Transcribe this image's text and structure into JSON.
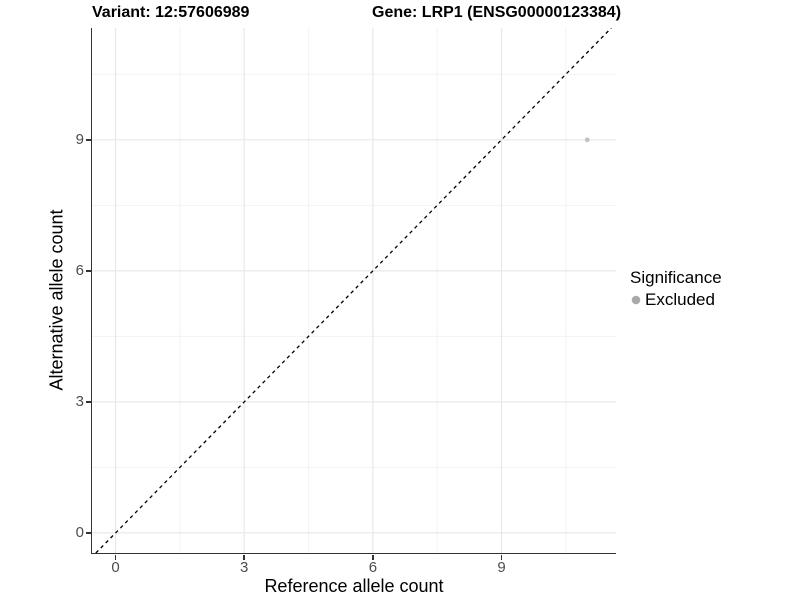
{
  "chart_data": {
    "type": "scatter",
    "title_left": "Variant: 12:57606989",
    "title_right": "Gene: LRP1 (ENSG00000123384)",
    "xlabel": "Reference allele count",
    "ylabel": "Alternative allele count",
    "x_ticks": [
      0,
      3,
      6,
      9
    ],
    "y_ticks": [
      0,
      3,
      6,
      9
    ],
    "xlim": [
      -0.55,
      11.67
    ],
    "ylim": [
      -0.46,
      11.56
    ],
    "grid": {
      "major": true,
      "minor": true,
      "major_color": "#e8e8e8",
      "minor_color": "#f3f3f3"
    },
    "identity_line": {
      "equation": "y = x",
      "style": "dashed",
      "color": "#000000"
    },
    "series": [
      {
        "name": "Excluded",
        "color": "#c2c2c2",
        "points": [
          {
            "x": 11,
            "y": 9
          }
        ]
      }
    ],
    "legend": {
      "title": "Significance",
      "position": "right",
      "items": [
        {
          "label": "Excluded",
          "color": "#a9a9a9"
        }
      ]
    },
    "axis_line_color": "#333333",
    "tick_label_color": "#4d4d4d"
  }
}
